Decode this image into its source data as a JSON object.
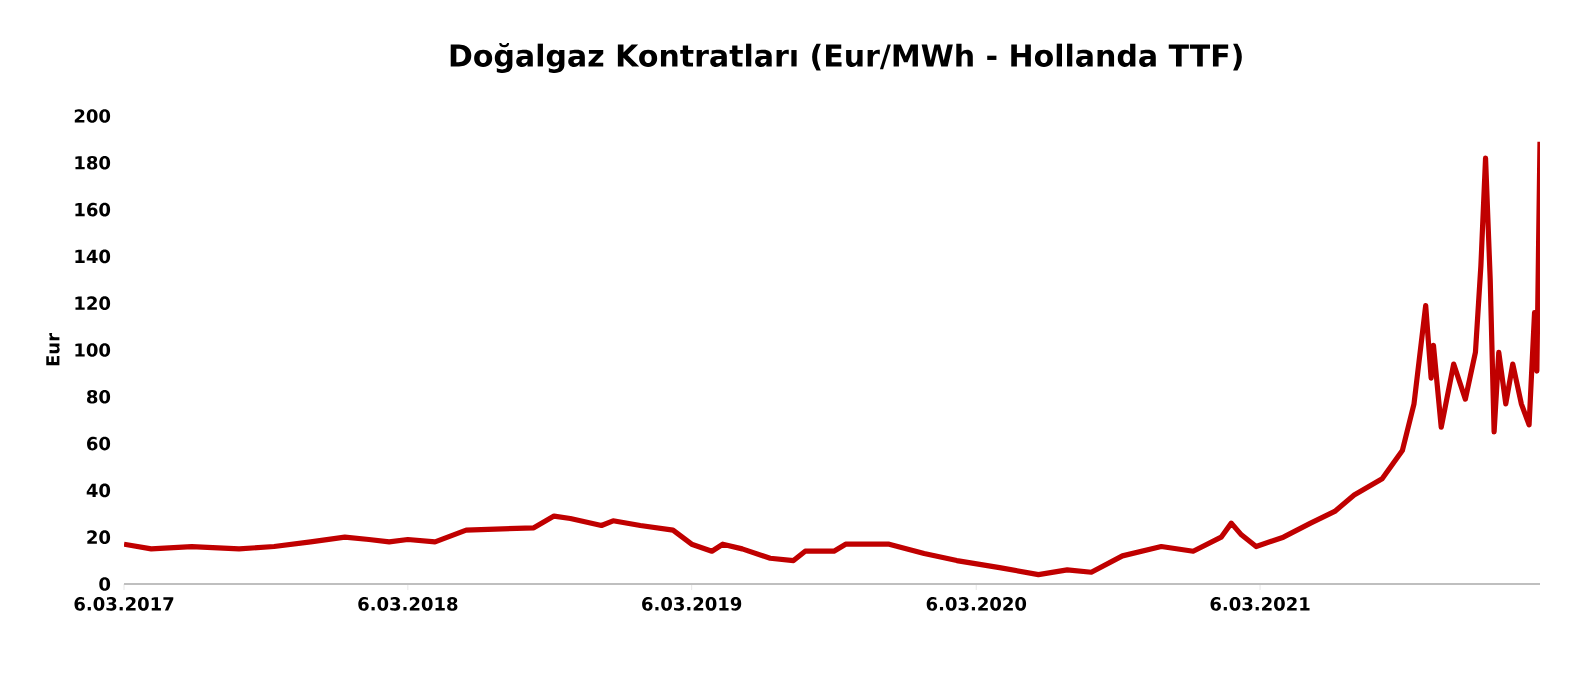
{
  "chart_data": {
    "type": "line",
    "title": "Doğalgaz Kontratları (Eur/MWh - Hollanda TTF)",
    "ylabel": "Eur",
    "x": [
      "2017-03-06",
      "2017-04-10",
      "2017-06-01",
      "2017-08-01",
      "2017-09-15",
      "2017-11-01",
      "2017-12-15",
      "2018-01-15",
      "2018-02-10",
      "2018-03-06",
      "2018-04-10",
      "2018-05-20",
      "2018-08-15",
      "2018-09-10",
      "2018-10-01",
      "2018-11-10",
      "2018-11-25",
      "2018-12-30",
      "2019-02-10",
      "2019-03-06",
      "2019-04-01",
      "2019-04-15",
      "2019-05-10",
      "2019-06-15",
      "2019-07-15",
      "2019-07-30",
      "2019-09-05",
      "2019-09-20",
      "2019-10-15",
      "2019-11-15",
      "2019-12-30",
      "2020-02-10",
      "2020-04-05",
      "2020-05-25",
      "2020-07-01",
      "2020-08-01",
      "2020-09-10",
      "2020-10-30",
      "2020-12-10",
      "2021-01-15",
      "2021-01-28",
      "2021-02-10",
      "2021-03-01",
      "2021-04-05",
      "2021-05-10",
      "2021-06-10",
      "2021-07-05",
      "2021-08-10",
      "2021-09-05",
      "2021-09-20",
      "2021-10-05",
      "2021-10-12",
      "2021-10-15",
      "2021-10-25",
      "2021-11-10",
      "2021-11-25",
      "2021-12-08",
      "2021-12-15",
      "2021-12-21",
      "2021-12-27",
      "2022-01-01",
      "2022-01-07",
      "2022-01-16",
      "2022-01-25",
      "2022-02-05",
      "2022-02-15",
      "2022-02-22",
      "2022-02-25",
      "2022-03-01"
    ],
    "series": [
      {
        "color": "#c00000",
        "values": [
          17,
          15,
          16,
          15,
          16,
          18,
          20,
          19,
          18,
          19,
          18,
          23,
          24,
          29,
          28,
          25,
          27,
          25,
          23,
          17,
          14,
          17,
          15,
          11,
          10,
          14,
          14,
          17,
          17,
          17,
          13,
          10,
          7,
          4,
          6,
          5,
          12,
          16,
          14,
          20,
          26,
          21,
          16,
          20,
          26,
          31,
          38,
          45,
          57,
          77,
          119,
          88,
          102,
          67,
          94,
          79,
          99,
          136,
          182,
          130,
          65,
          99,
          77,
          94,
          77,
          68,
          116,
          91,
          189
        ]
      }
    ],
    "xlim": [
      "2017-03-06",
      "2022-03-01"
    ],
    "xticks": [
      {
        "value": "2017-03-06",
        "label": "6.03.2017"
      },
      {
        "value": "2018-03-06",
        "label": "6.03.2018"
      },
      {
        "value": "2019-03-06",
        "label": "6.03.2019"
      },
      {
        "value": "2020-03-06",
        "label": "6.03.2020"
      },
      {
        "value": "2021-03-06",
        "label": "6.03.2021"
      }
    ],
    "ylim": [
      0,
      200
    ],
    "yticks": [
      0,
      20,
      40,
      60,
      80,
      100,
      120,
      140,
      160,
      180,
      200
    ],
    "marker": "none",
    "line_style": "solid"
  }
}
